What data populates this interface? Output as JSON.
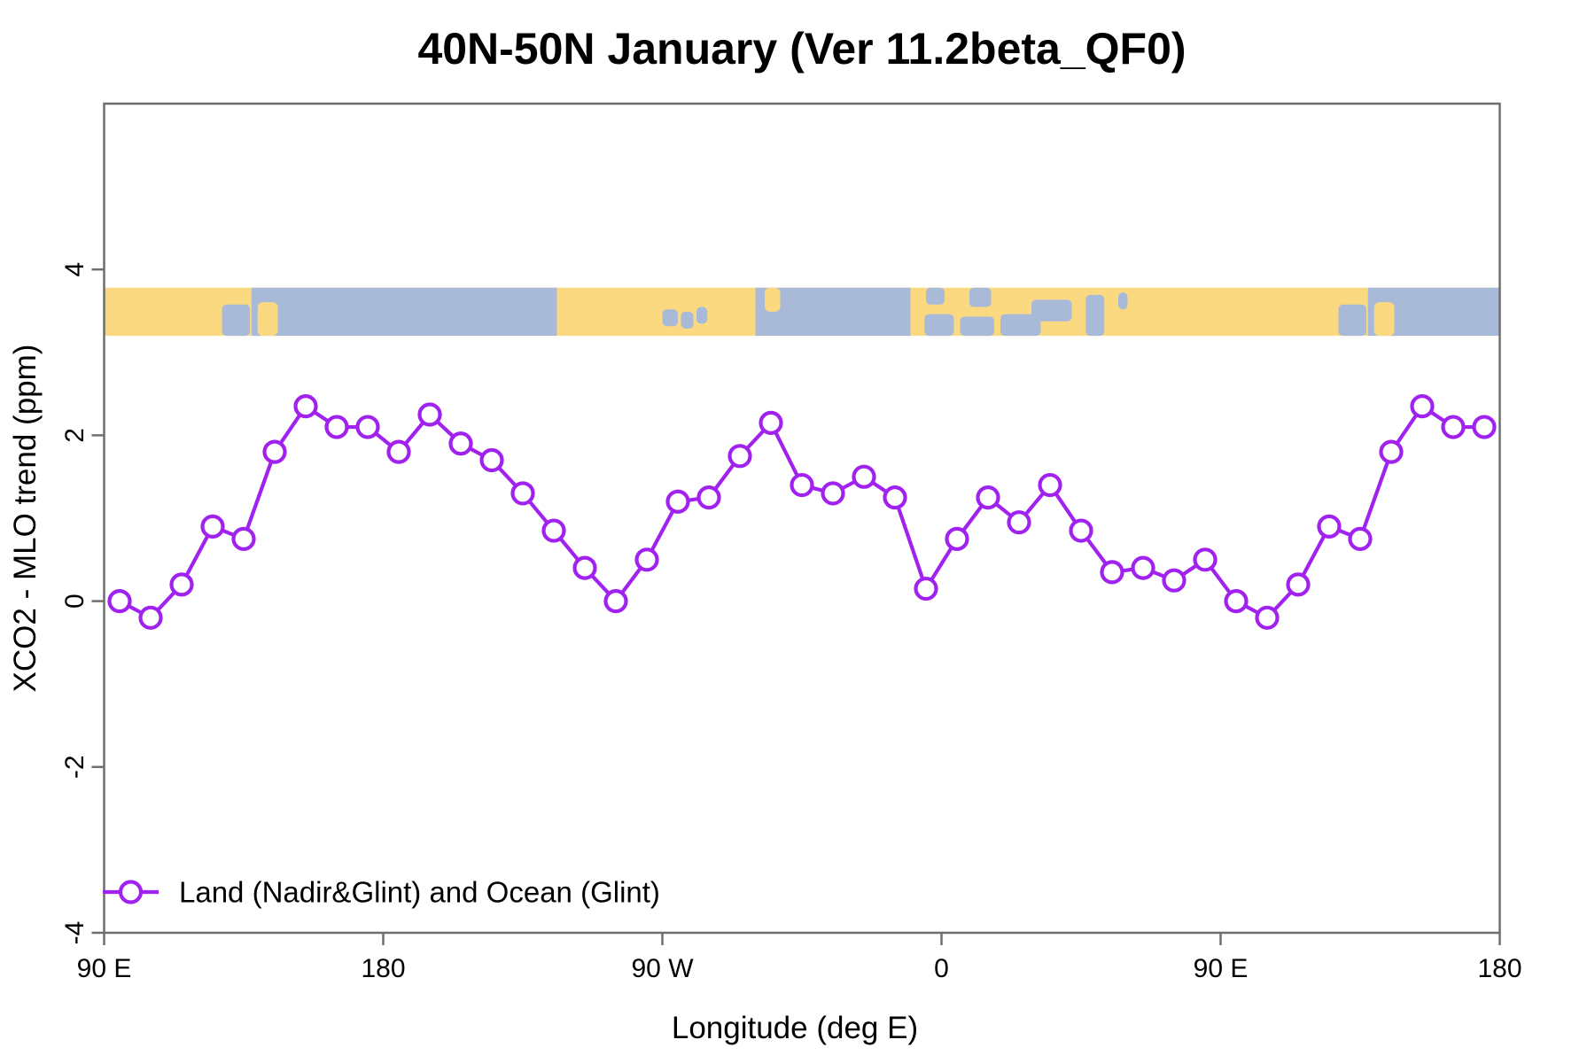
{
  "chart_data": {
    "type": "line",
    "title": "40N-50N January (Ver 11.2beta_QF0)",
    "xlabel": "Longitude (deg E)",
    "ylabel": "XCO2 - MLO trend (ppm)",
    "xlim": [
      90,
      540
    ],
    "ylim": [
      -4,
      6
    ],
    "grid": false,
    "x_ticks": [
      {
        "value": 90,
        "label": "90 E"
      },
      {
        "value": 180,
        "label": "180"
      },
      {
        "value": 270,
        "label": "90 W"
      },
      {
        "value": 360,
        "label": "0"
      },
      {
        "value": 450,
        "label": "90 E"
      },
      {
        "value": 540,
        "label": "180"
      }
    ],
    "y_ticks": [
      {
        "value": -4,
        "label": "-4"
      },
      {
        "value": -2,
        "label": "-2"
      },
      {
        "value": 0,
        "label": "0"
      },
      {
        "value": 2,
        "label": "2"
      },
      {
        "value": 4,
        "label": "4"
      }
    ],
    "series": [
      {
        "name": "Land (Nadir&Glint) and Ocean (Glint)",
        "color": "#A122EF",
        "marker": "open-circle",
        "x": [
          95,
          105,
          115,
          125,
          135,
          145,
          155,
          165,
          175,
          185,
          195,
          205,
          215,
          225,
          235,
          245,
          255,
          265,
          275,
          285,
          295,
          305,
          315,
          325,
          335,
          345,
          355,
          365,
          375,
          385,
          395,
          405,
          415,
          425,
          435,
          445,
          455,
          465,
          475,
          485,
          495,
          505,
          515,
          525,
          535
        ],
        "values": [
          0.0,
          -0.2,
          0.2,
          0.9,
          0.75,
          1.8,
          2.35,
          2.1,
          2.1,
          1.8,
          2.25,
          1.9,
          1.7,
          1.3,
          0.85,
          0.4,
          0.0,
          0.5,
          1.2,
          1.25,
          1.75,
          2.15,
          1.4,
          1.3,
          1.5,
          1.25,
          0.15,
          0.75,
          1.25,
          0.95,
          1.4,
          0.85,
          0.35,
          0.4,
          0.25,
          0.5,
          0.0,
          -0.2,
          0.2,
          0.9,
          0.75,
          1.8,
          2.35,
          2.1,
          2.1
        ]
      }
    ],
    "legend": {
      "position": "bottom-left",
      "label": "Land (Nadir&Glint) and Ocean (Glint)"
    },
    "map_strip": {
      "description": "world coastline band drawn across the plot",
      "y_top_value": 3.78,
      "y_bottom_value": 3.2,
      "land_color": "#FBD980",
      "ocean_color": "#A9BAD9",
      "ocean_spans_deg": [
        [
          137.5,
          236
        ],
        [
          300,
          350
        ],
        [
          497.5,
          540
        ]
      ],
      "islands_deg": [
        [
          139.5,
          146,
          0.3,
          1.0
        ],
        [
          303,
          308,
          0.0,
          0.5
        ],
        [
          499.5,
          506,
          0.3,
          1.0
        ]
      ],
      "seas_deg": [
        [
          128,
          137,
          0.35,
          1.0
        ],
        [
          488,
          497,
          0.35,
          1.0
        ],
        [
          270,
          275,
          0.45,
          0.8
        ],
        [
          276,
          280,
          0.5,
          0.85
        ],
        [
          281,
          284.5,
          0.4,
          0.75
        ],
        [
          354.5,
          364,
          0.55,
          1.0
        ],
        [
          366,
          377,
          0.6,
          1.0
        ],
        [
          379,
          392,
          0.55,
          1.0
        ],
        [
          389,
          402,
          0.25,
          0.7
        ],
        [
          406.5,
          412.5,
          0.15,
          1.0
        ],
        [
          417,
          420,
          0.1,
          0.45
        ],
        [
          355,
          361,
          0.0,
          0.35
        ],
        [
          369,
          376,
          0.0,
          0.4
        ]
      ]
    },
    "frame_color": "#6E6E6E"
  }
}
